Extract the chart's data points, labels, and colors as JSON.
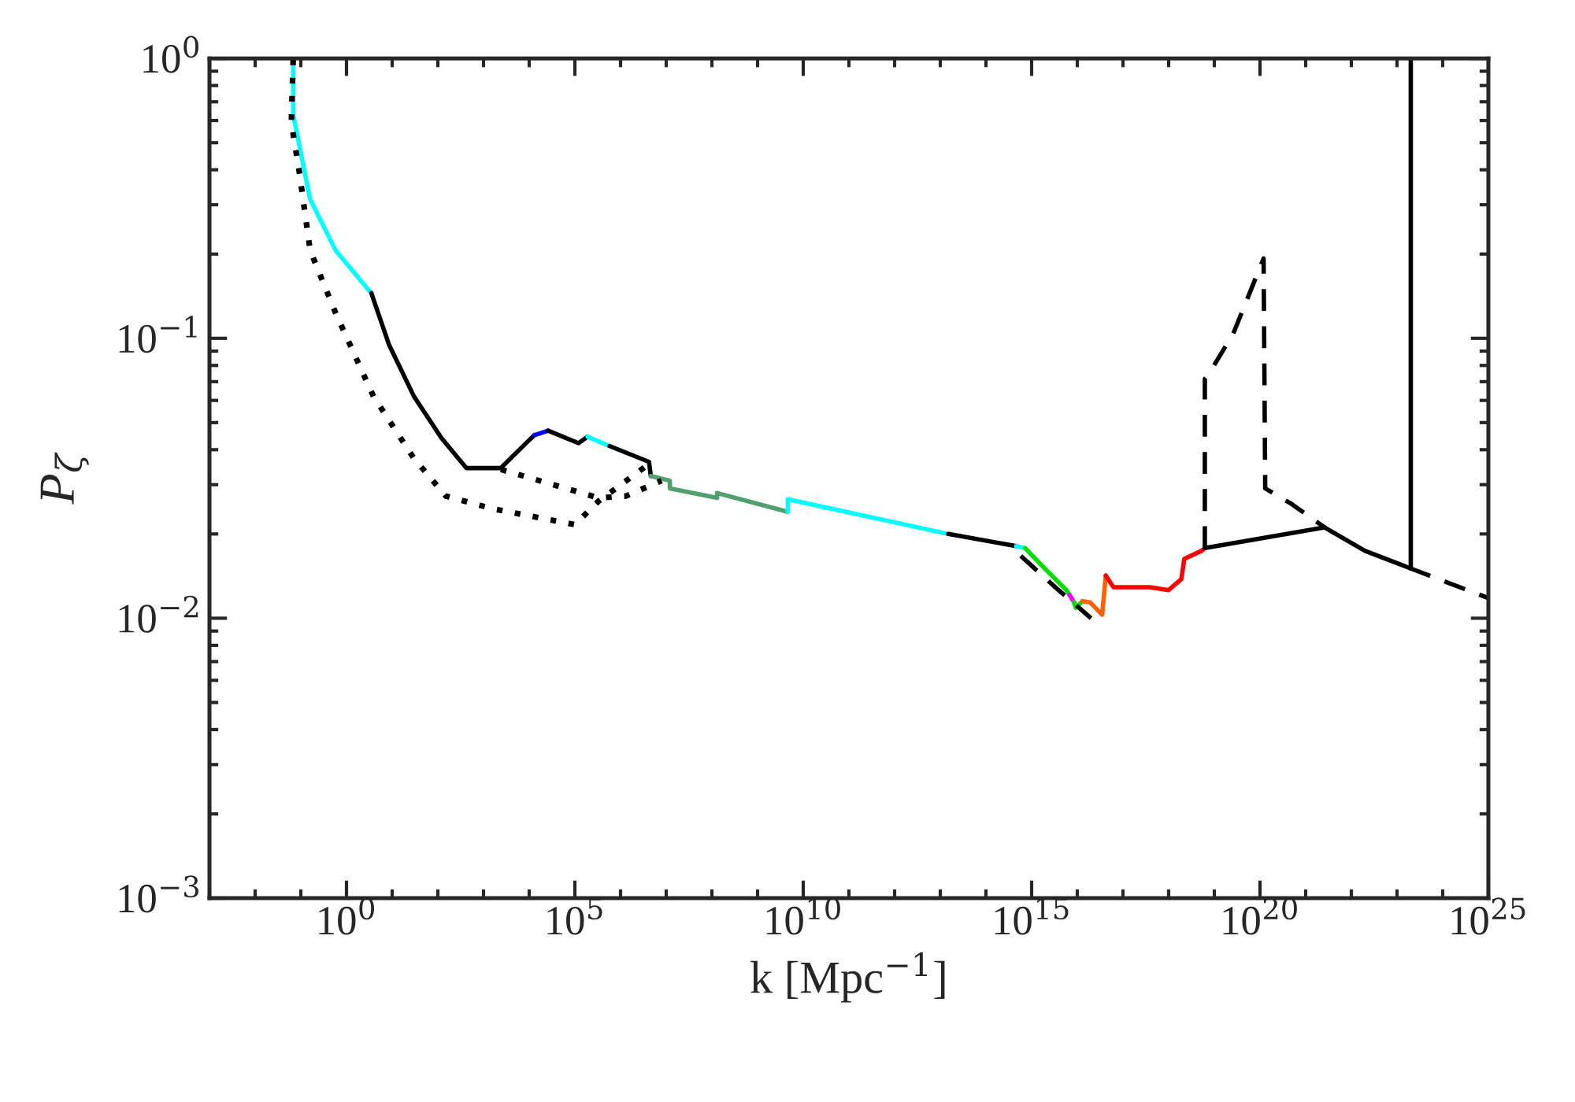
{
  "chart_data": {
    "type": "line",
    "xlabel": "k [Mpc$^{−1}$]",
    "ylabel": "P$_{ζ}$",
    "log": "xy",
    "grid": false,
    "legend": false,
    "marker": "none",
    "xlim": [
      0.001,
      1e+25
    ],
    "ylim": [
      0.001,
      1
    ],
    "xticks": [
      {
        "value": 1,
        "label": "10$^{0}$"
      },
      {
        "value": 100000.0,
        "label": "10$^{5}$"
      },
      {
        "value": 10000000000.0,
        "label": "10$^{10}$"
      },
      {
        "value": 1000000000000000.0,
        "label": "10$^{15}$"
      },
      {
        "value": 1e+20,
        "label": "10$^{20}$"
      },
      {
        "value": 1e+25,
        "label": "10$^{25}$"
      }
    ],
    "yticks": [
      {
        "value": 0.001,
        "label": "10$^{−3}$"
      },
      {
        "value": 0.01,
        "label": "10$^{−2}$"
      },
      {
        "value": 0.1,
        "label": "10$^{−1}$"
      },
      {
        "value": 1,
        "label": "10$^{0}$"
      }
    ],
    "series": [
      {
        "color": "#00ffff",
        "line_style": "solid",
        "x": [
          0.068,
          0.068,
          0.16,
          0.58,
          3.5
        ],
        "values": [
          0.99,
          0.63,
          0.314,
          0.206,
          0.145
        ]
      },
      {
        "color": "#000000",
        "line_style": "solid",
        "x": [
          3.5,
          8.5,
          30,
          120,
          420,
          2400,
          9300,
          13000
        ],
        "values": [
          0.145,
          0.095,
          0.062,
          0.044,
          0.0344,
          0.0344,
          0.0428,
          0.0451
        ]
      },
      {
        "color": "#0000ff",
        "line_style": "solid",
        "x": [
          13000,
          26000
        ],
        "values": [
          0.0451,
          0.0468
        ]
      },
      {
        "color": "#000000",
        "line_style": "solid",
        "x": [
          26000,
          120000,
          190000
        ],
        "values": [
          0.0468,
          0.0422,
          0.0445
        ]
      },
      {
        "color": "#00ffff",
        "line_style": "solid",
        "x": [
          190000,
          580000
        ],
        "values": [
          0.0445,
          0.0412
        ]
      },
      {
        "color": "#000000",
        "line_style": "solid",
        "x": [
          580000,
          4200000,
          4600000
        ],
        "values": [
          0.0412,
          0.0362,
          0.0322
        ]
      },
      {
        "color": "#50a070",
        "line_style": "solid",
        "x": [
          4600000,
          12000000,
          12000000,
          130000000,
          130000000,
          4600000000
        ],
        "values": [
          0.0322,
          0.031,
          0.0291,
          0.0269,
          0.028,
          0.024
        ]
      },
      {
        "color": "#00ffff",
        "line_style": "solid",
        "x": [
          4600000000,
          4600000000,
          15000000000000.0
        ],
        "values": [
          0.024,
          0.0266,
          0.02
        ]
      },
      {
        "color": "#000000",
        "line_style": "solid",
        "x": [
          15000000000000.0,
          460000000000000.0
        ],
        "values": [
          0.02,
          0.0181
        ]
      },
      {
        "color": "#00ffff",
        "line_style": "solid",
        "x": [
          460000000000000.0,
          720000000000000.0
        ],
        "values": [
          0.0181,
          0.0178
        ]
      },
      {
        "color": "#00dd00",
        "line_style": "solid",
        "x": [
          720000000000000.0,
          1900000000000000.0,
          5800000000000000.0,
          6800000000000000.0
        ],
        "values": [
          0.0178,
          0.0151,
          0.0126,
          0.0121
        ]
      },
      {
        "color": "#ff00ff",
        "line_style": "solid",
        "x": [
          6800000000000000.0,
          8500000000000000.0
        ],
        "values": [
          0.0121,
          0.0114
        ]
      },
      {
        "color": "#00dd00",
        "line_style": "solid",
        "x": [
          8500000000000000.0,
          9300000000000000.0,
          1.3e+16
        ],
        "values": [
          0.0114,
          0.0109,
          0.0115
        ]
      },
      {
        "color": "#ff6000",
        "line_style": "solid",
        "x": [
          1.3e+16,
          1.9e+16,
          3.5e+16,
          4.2e+16
        ],
        "values": [
          0.0115,
          0.0114,
          0.0103,
          0.0142
        ]
      },
      {
        "color": "#ff0000",
        "line_style": "solid",
        "x": [
          4.2e+16,
          6.2e+16,
          1.7e+17,
          3.9e+17,
          1e+18,
          1.9e+18,
          2.2e+18,
          5.2e+18,
          6.2e+18
        ],
        "values": [
          0.0142,
          0.0129,
          0.0129,
          0.0129,
          0.0126,
          0.0138,
          0.0163,
          0.0174,
          0.0178
        ]
      },
      {
        "color": "#000000",
        "line_style": "solid",
        "x": [
          6.2e+18,
          2.6e+21
        ],
        "values": [
          0.0178,
          0.0211
        ]
      },
      {
        "color": "#000000",
        "line_style": "dashed",
        "x": [
          6.2e+18,
          6.2e+18,
          7.9e+18,
          2.6e+19,
          1.2e+20,
          1.3e+20,
          4.9e+20,
          2.6e+21
        ],
        "values": [
          0.0178,
          0.0716,
          0.0754,
          0.104,
          0.193,
          0.0291,
          0.0256,
          0.0211
        ]
      },
      {
        "color": "#000000",
        "line_style": "solid",
        "x": [
          2.6e+21,
          2e+22,
          1.9e+23
        ],
        "values": [
          0.0211,
          0.0174,
          0.0151
        ]
      },
      {
        "color": "#000000",
        "line_style": "dashed",
        "x": [
          1.9e+23,
          1e+25
        ],
        "values": [
          0.0151,
          0.0118
        ]
      },
      {
        "color": "#000000",
        "line_style": "solid",
        "x": [
          2e+23,
          2e+23
        ],
        "values": [
          1.0,
          0.0151
        ]
      },
      {
        "color": "#000000",
        "line_style": "dotted",
        "x": [
          0.068,
          0.062,
          0.093,
          0.16,
          0.58,
          3.9,
          30,
          150,
          1600,
          100000,
          330000,
          3500000
        ],
        "values": [
          0.99,
          0.59,
          0.391,
          0.206,
          0.123,
          0.062,
          0.0372,
          0.0273,
          0.0246,
          0.0216,
          0.0262,
          0.0348
        ]
      },
      {
        "color": "#000000",
        "line_style": "dotted",
        "x": [
          2400,
          330000,
          1300000,
          7900000
        ],
        "values": [
          0.034,
          0.0269,
          0.0273,
          0.031
        ]
      },
      {
        "color": "#000000",
        "line_style": "dashed",
        "x": [
          580000000000000.0,
          3300000000000000.0,
          2e+16
        ],
        "values": [
          0.0167,
          0.0129,
          0.01
        ]
      }
    ]
  }
}
